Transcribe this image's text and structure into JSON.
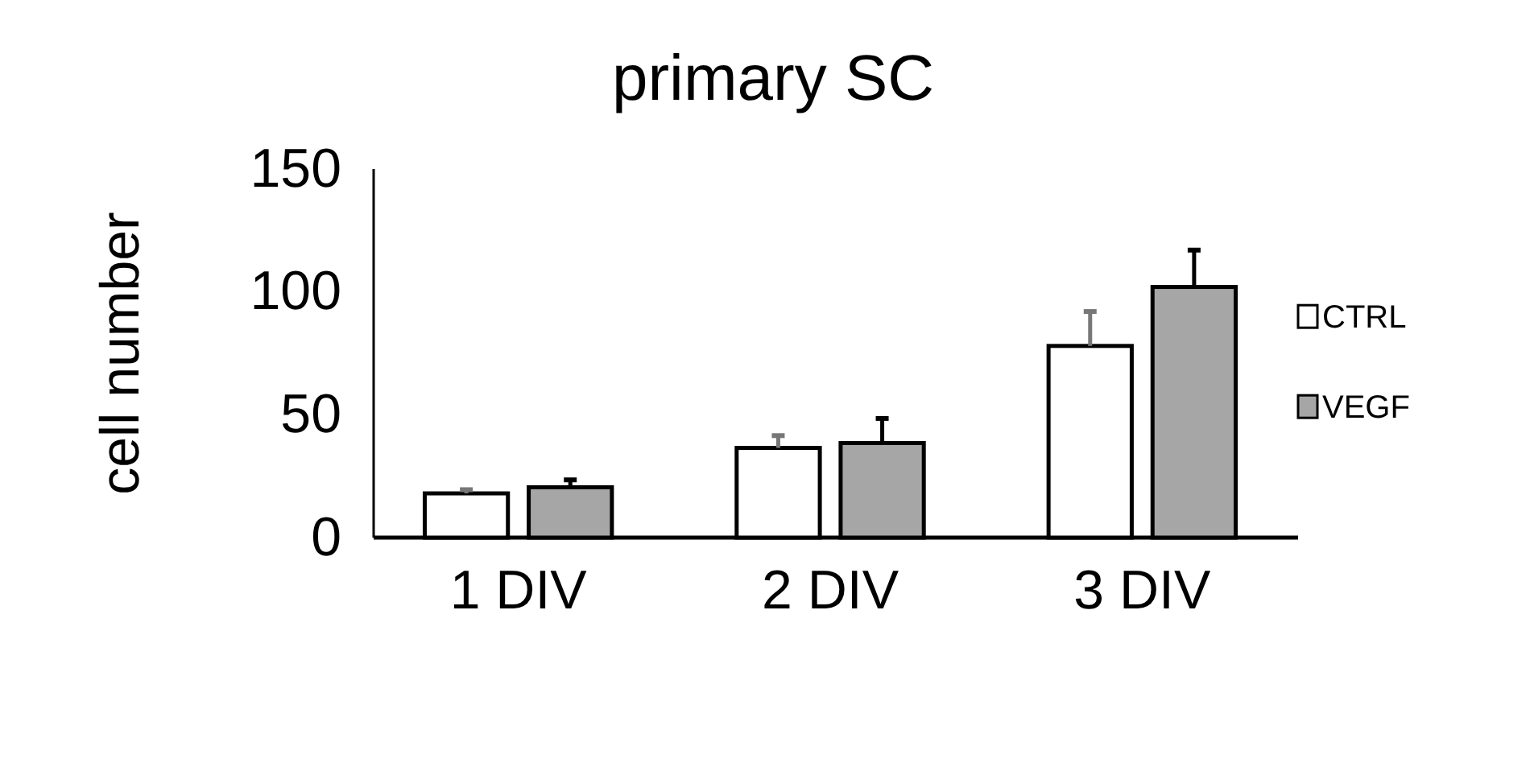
{
  "chart_data": {
    "type": "bar",
    "title": "primary SC",
    "ylabel": "cell number",
    "categories": [
      "1 DIV",
      "2 DIV",
      "3 DIV"
    ],
    "series": [
      {
        "name": "CTRL",
        "color": "#ffffff",
        "values": [
          18,
          36.5,
          78
        ],
        "errors": [
          [
            18,
            19.5
          ],
          [
            36.5,
            41.5
          ],
          [
            78,
            92
          ]
        ]
      },
      {
        "name": "VEGF",
        "color": "#a6a6a6",
        "values": [
          20.5,
          38.5,
          102
        ],
        "errors": [
          [
            20.5,
            23.5
          ],
          [
            38.5,
            48.5
          ],
          [
            102,
            117
          ]
        ]
      }
    ],
    "ylim": [
      0,
      150
    ],
    "yticks": [
      0,
      50,
      100,
      150
    ],
    "grid": false,
    "legend": "right"
  }
}
